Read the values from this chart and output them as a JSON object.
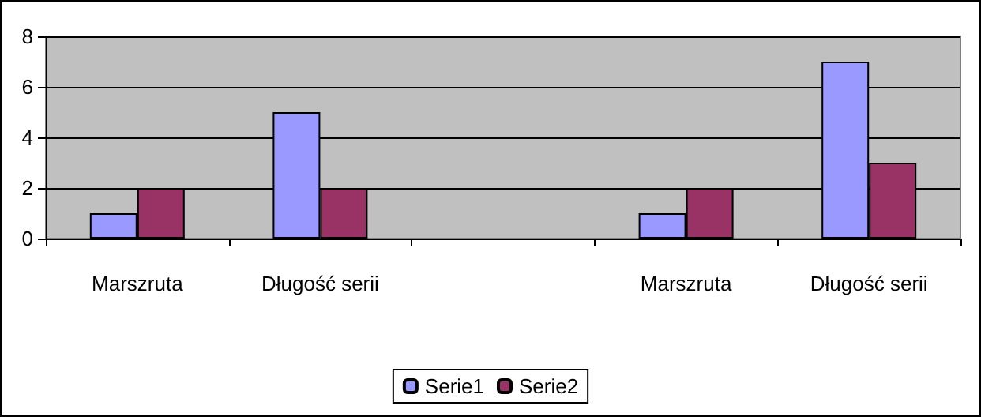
{
  "chart_data": {
    "type": "bar",
    "categories": [
      "Marszruta",
      "Długość serii",
      null,
      "Marszruta",
      "Długość serii"
    ],
    "series": [
      {
        "name": "Serie1",
        "color": "#9999ff",
        "values": [
          1,
          5,
          null,
          1,
          7
        ]
      },
      {
        "name": "Serie2",
        "color": "#993366",
        "values": [
          2,
          2,
          null,
          2,
          3
        ]
      }
    ],
    "ylim": [
      0,
      8
    ],
    "yticks": [
      0,
      2,
      4,
      6,
      8
    ],
    "grid": "y",
    "legend": "bottom"
  }
}
